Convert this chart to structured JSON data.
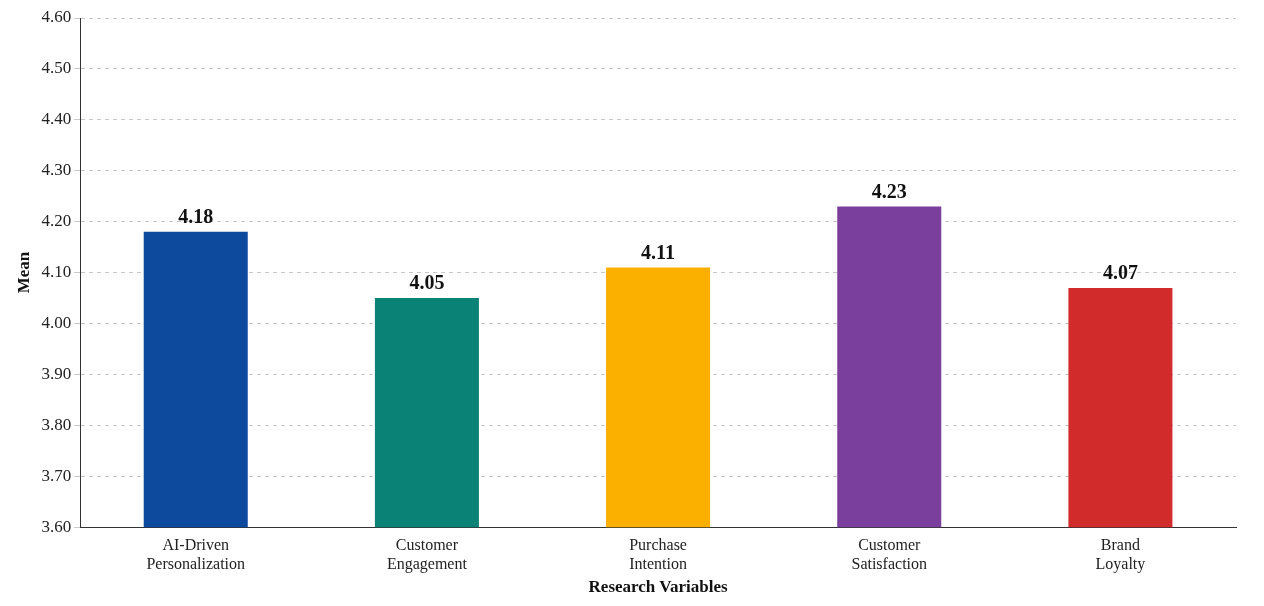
{
  "chart_data": {
    "type": "bar",
    "xlabel": "Research Variables",
    "ylabel": "Mean",
    "categories": [
      "AI-Driven Personalization",
      "Customer Engagement",
      "Purchase Intention",
      "Customer Satisfaction",
      "Brand Loyalty"
    ],
    "values": [
      4.18,
      4.05,
      4.11,
      4.23,
      4.07
    ],
    "colors": [
      "#0d4a9e",
      "#0b8276",
      "#fbb000",
      "#7a3f9d",
      "#d22b2b"
    ],
    "ylim": [
      3.6,
      4.6
    ],
    "yticks": [
      {
        "value": 3.6,
        "label": "3.60"
      },
      {
        "value": 3.7,
        "label": "3.70"
      },
      {
        "value": 3.8,
        "label": "3.80"
      },
      {
        "value": 3.9,
        "label": "3.90"
      },
      {
        "value": 4.0,
        "label": "4.00"
      },
      {
        "value": 4.1,
        "label": "4.10"
      },
      {
        "value": 4.2,
        "label": "4.20"
      },
      {
        "value": 4.3,
        "label": "4.30"
      },
      {
        "value": 4.4,
        "label": "4.40"
      },
      {
        "value": 4.5,
        "label": "4.50"
      },
      {
        "value": 4.6,
        "label": "4.60"
      }
    ],
    "grid": "y",
    "data_labels": true,
    "legend": false
  }
}
